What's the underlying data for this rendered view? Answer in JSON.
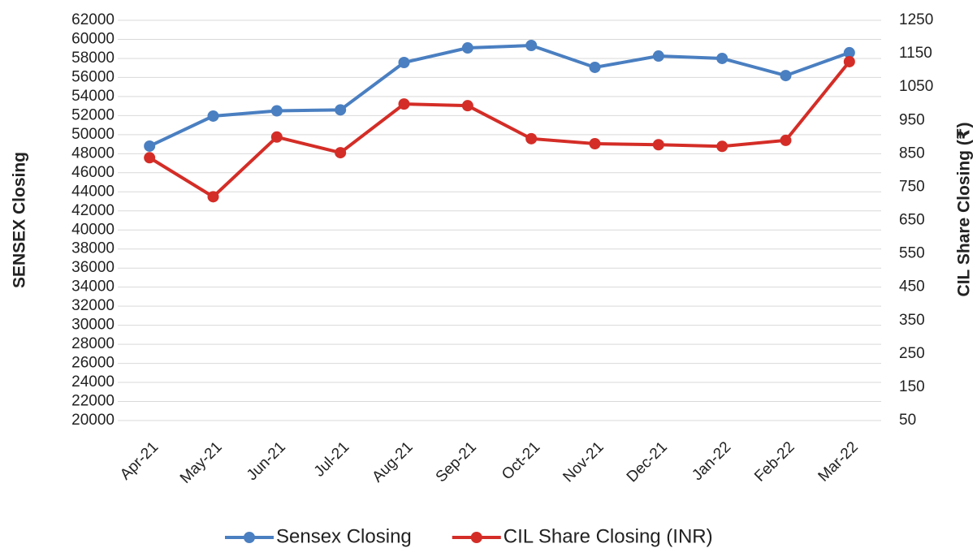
{
  "chart_data": {
    "type": "line",
    "categories": [
      "Apr-21",
      "May-21",
      "Jun-21",
      "Jul-21",
      "Aug-21",
      "Sep-21",
      "Oct-21",
      "Nov-21",
      "Dec-21",
      "Jan-22",
      "Feb-22",
      "Mar-22"
    ],
    "series": [
      {
        "name": "Sensex Closing",
        "color": "#4a7fc1",
        "values": [
          48800,
          51950,
          52500,
          52600,
          57570,
          59100,
          59360,
          57060,
          58250,
          58000,
          56200,
          58600
        ]
      },
      {
        "name": "CIL Share Closing (INR)",
        "color": "#d42d27",
        "axis": "y2",
        "values": [
          838,
          721,
          900,
          853,
          999,
          994,
          895,
          880,
          877,
          872,
          890,
          1126
        ]
      }
    ],
    "ylabel": "SENSEX Closing",
    "y2label": "CIL Share Closing (₹)",
    "ylim": [
      20000,
      62000
    ],
    "yticks": [
      20000,
      22000,
      24000,
      26000,
      28000,
      30000,
      32000,
      34000,
      36000,
      38000,
      40000,
      42000,
      44000,
      46000,
      48000,
      50000,
      52000,
      54000,
      56000,
      58000,
      60000,
      62000
    ],
    "y2lim": [
      50,
      1250
    ],
    "y2ticks": [
      50,
      150,
      250,
      350,
      450,
      550,
      650,
      750,
      850,
      950,
      1050,
      1150,
      1250
    ],
    "grid": true,
    "legend": "bottom"
  }
}
